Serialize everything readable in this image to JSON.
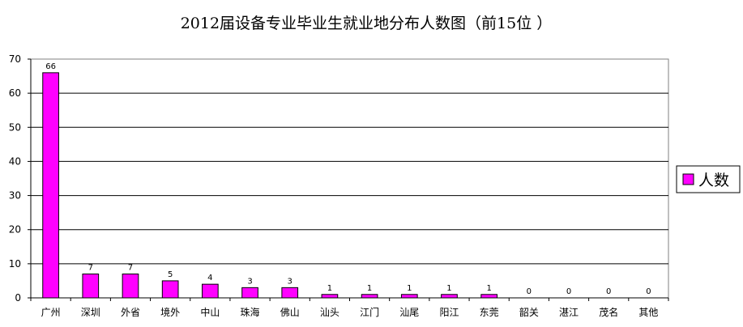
{
  "chart_data": {
    "type": "bar",
    "title": "2012届设备专业毕业生就业地分布人数图（前15位 ）",
    "xlabel": "",
    "ylabel": "",
    "ylim": [
      0,
      70
    ],
    "yticks": [
      0,
      10,
      20,
      30,
      40,
      50,
      60,
      70
    ],
    "grid": true,
    "legend": "right",
    "categories": [
      "广州",
      "深圳",
      "外省",
      "境外",
      "中山",
      "珠海",
      "佛山",
      "汕头",
      "江门",
      "汕尾",
      "阳江",
      "东莞",
      "韶关",
      "湛江",
      "茂名",
      "其他"
    ],
    "series": [
      {
        "name": "人数",
        "color": "#ff00ff",
        "values": [
          66,
          7,
          7,
          5,
          4,
          3,
          3,
          1,
          1,
          1,
          1,
          1,
          0,
          0,
          0,
          0
        ]
      }
    ]
  }
}
